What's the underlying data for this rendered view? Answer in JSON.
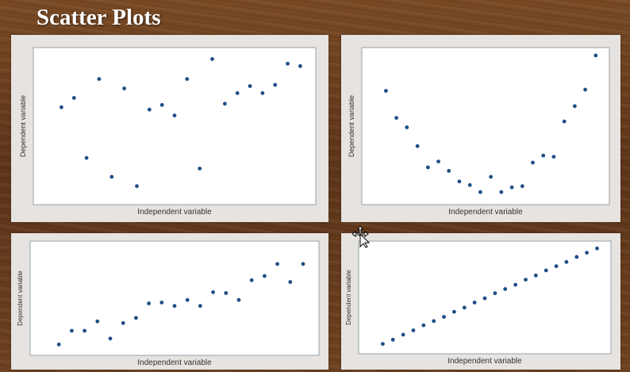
{
  "slide": {
    "title": "Scatter Plots"
  },
  "colors": {
    "point": "#1f4e85",
    "plot_bg": "#ffffff",
    "panel_bg": "#e6e3e0",
    "axis": "#9aa0a8"
  },
  "chart_data": [
    {
      "type": "scatter",
      "xlabel": "Independent variable",
      "ylabel": "Dependent variable",
      "xlim": [
        0,
        20
      ],
      "ylim": [
        0,
        12
      ],
      "points": [
        [
          1,
          7.6
        ],
        [
          2,
          8.4
        ],
        [
          3,
          3.3
        ],
        [
          4,
          10
        ],
        [
          5,
          1.7
        ],
        [
          6,
          9.2
        ],
        [
          7,
          0.9
        ],
        [
          8,
          7.4
        ],
        [
          9,
          7.8
        ],
        [
          10,
          6.9
        ],
        [
          11,
          10
        ],
        [
          12,
          2.4
        ],
        [
          13,
          11.7
        ],
        [
          14,
          7.9
        ],
        [
          15,
          8.8
        ],
        [
          16,
          9.4
        ],
        [
          17,
          8.8
        ],
        [
          18,
          9.5
        ],
        [
          19,
          11.3
        ],
        [
          20,
          11.1
        ]
      ],
      "grid": false
    },
    {
      "type": "scatter",
      "xlabel": "Independent variable",
      "ylabel": "Dependent variable",
      "xlim": [
        0,
        21
      ],
      "ylim": [
        0,
        12
      ],
      "points": [
        [
          1,
          9
        ],
        [
          2,
          6.7
        ],
        [
          3,
          5.9
        ],
        [
          4,
          4.3
        ],
        [
          5,
          2.5
        ],
        [
          6,
          3
        ],
        [
          7,
          2.2
        ],
        [
          8,
          1.3
        ],
        [
          9,
          1
        ],
        [
          10,
          0.4
        ],
        [
          11,
          1.7
        ],
        [
          12,
          0.4
        ],
        [
          13,
          0.8
        ],
        [
          14,
          0.9
        ],
        [
          15,
          2.9
        ],
        [
          16,
          3.5
        ],
        [
          17,
          3.4
        ],
        [
          18,
          6.4
        ],
        [
          19,
          7.7
        ],
        [
          20,
          9.1
        ],
        [
          21,
          12
        ]
      ],
      "grid": false
    },
    {
      "type": "scatter",
      "xlabel": "Independent variable",
      "ylabel": "Dependent variable",
      "xlim": [
        0,
        20
      ],
      "ylim": [
        0,
        12
      ],
      "points": [
        [
          1,
          0.6
        ],
        [
          2,
          2.2
        ],
        [
          3,
          2.2
        ],
        [
          4,
          3.3
        ],
        [
          5,
          1.3
        ],
        [
          6,
          3.1
        ],
        [
          7,
          3.7
        ],
        [
          8,
          5.4
        ],
        [
          9,
          5.5
        ],
        [
          10,
          5.1
        ],
        [
          11,
          5.8
        ],
        [
          12,
          5.1
        ],
        [
          13,
          6.7
        ],
        [
          14,
          6.6
        ],
        [
          15,
          5.8
        ],
        [
          16,
          8.1
        ],
        [
          17,
          8.6
        ],
        [
          18,
          10
        ],
        [
          19,
          7.9
        ],
        [
          20,
          10
        ]
      ],
      "grid": false
    },
    {
      "type": "scatter",
      "xlabel": "Independent variable",
      "ylabel": "Dependent variable",
      "xlim": [
        0,
        22
      ],
      "ylim": [
        0,
        12
      ],
      "points": [
        [
          1,
          0.5
        ],
        [
          2,
          1
        ],
        [
          3,
          1.6
        ],
        [
          4,
          2.1
        ],
        [
          5,
          2.7
        ],
        [
          6,
          3.2
        ],
        [
          7,
          3.7
        ],
        [
          8,
          4.3
        ],
        [
          9,
          4.8
        ],
        [
          10,
          5.4
        ],
        [
          11,
          5.9
        ],
        [
          12,
          6.5
        ],
        [
          13,
          7
        ],
        [
          14,
          7.5
        ],
        [
          15,
          8.1
        ],
        [
          16,
          8.6
        ],
        [
          17,
          9.2
        ],
        [
          18,
          9.7
        ],
        [
          19,
          10.2
        ],
        [
          20,
          10.8
        ],
        [
          21,
          11.3
        ],
        [
          22,
          11.8
        ]
      ],
      "grid": false
    }
  ]
}
